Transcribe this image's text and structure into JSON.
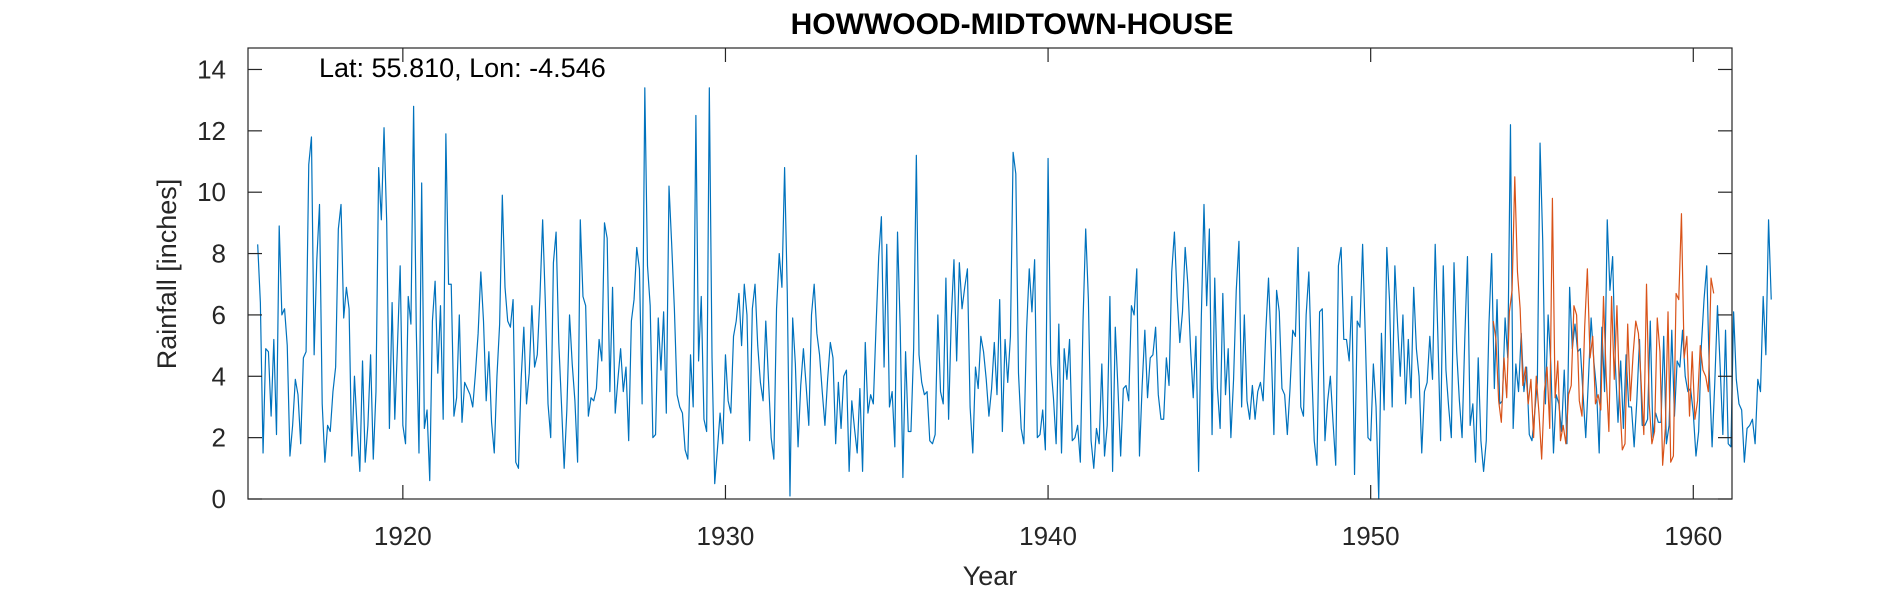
{
  "chart_data": {
    "type": "line",
    "title": "HOWWOOD-MIDTOWN-HOUSE",
    "annotation": "Lat: 55.810, Lon: -4.546",
    "xlabel": "Year",
    "ylabel": "Rainfall [inches]",
    "xlim": [
      1915.2,
      1961.2
    ],
    "ylim": [
      0,
      14.7
    ],
    "x_ticks": [
      1920,
      1930,
      1940,
      1950,
      1960
    ],
    "x_tick_labels": [
      "1920",
      "1930",
      "1940",
      "1950",
      "1960"
    ],
    "y_ticks": [
      0,
      2,
      4,
      6,
      8,
      10,
      12,
      14
    ],
    "y_tick_labels": [
      "0",
      "2",
      "4",
      "6",
      "8",
      "10",
      "12",
      "14"
    ],
    "grid": false,
    "colors": {
      "observed": "#0072BD",
      "recent": "#D95319",
      "axes": "#262626"
    },
    "series": [
      {
        "x_start": 1915.5,
        "x_step": 0.083333,
        "values": [
          8.3,
          6.4,
          1.5,
          4.9,
          4.8,
          2.7,
          5.2,
          2.1,
          8.9,
          6.0,
          6.2,
          5.0,
          1.4,
          2.4,
          3.9,
          3.4,
          1.8,
          4.6,
          4.8,
          10.9,
          11.8,
          4.7,
          7.8,
          9.6,
          3.1,
          1.2,
          2.4,
          2.2,
          3.5,
          4.3,
          8.8,
          9.6,
          5.9,
          6.9,
          6.2,
          1.4,
          4.0,
          2.3,
          0.9,
          4.5,
          1.2,
          2.4,
          4.7,
          1.3,
          3.5,
          10.8,
          9.1,
          12.1,
          9.0,
          2.3,
          6.4,
          2.6,
          5.0,
          7.6,
          2.4,
          1.8,
          6.6,
          5.7,
          12.8,
          5.5,
          1.5,
          10.3,
          2.3,
          2.9,
          0.6,
          5.8,
          7.1,
          4.1,
          6.3,
          2.6,
          11.9,
          7.0,
          7.0,
          2.7,
          3.3,
          6.0,
          2.5,
          3.8,
          3.6,
          3.4,
          3.0,
          4.1,
          5.4,
          7.4,
          5.8,
          3.2,
          4.8,
          2.5,
          1.5,
          4.0,
          5.7,
          9.9,
          6.9,
          5.8,
          5.6,
          6.5,
          1.2,
          1.0,
          3.9,
          5.6,
          3.1,
          4.1,
          6.3,
          4.3,
          4.7,
          6.6,
          9.1,
          6.4,
          3.1,
          2.0,
          7.7,
          8.7,
          5.1,
          3.1,
          1.0,
          2.9,
          6.0,
          4.4,
          3.2,
          1.2,
          9.1,
          6.6,
          6.3,
          2.7,
          3.3,
          3.2,
          3.6,
          5.2,
          4.5,
          9.0,
          8.5,
          3.5,
          6.9,
          2.8,
          3.9,
          4.9,
          3.5,
          4.3,
          1.9,
          5.8,
          6.5,
          8.2,
          7.5,
          3.1,
          13.4,
          7.6,
          6.3,
          2.0,
          2.1,
          5.9,
          4.2,
          6.1,
          2.8,
          10.2,
          8.3,
          6.2,
          3.4,
          3.0,
          2.8,
          1.6,
          1.3,
          4.7,
          3.0,
          12.5,
          4.5,
          6.6,
          2.6,
          2.2,
          13.4,
          4.6,
          0.5,
          1.6,
          2.8,
          1.8,
          4.7,
          3.2,
          2.8,
          5.3,
          5.8,
          6.7,
          5.0,
          7.0,
          6.0,
          1.9,
          6.2,
          7.0,
          5.0,
          3.8,
          3.2,
          5.8,
          3.9,
          2.0,
          1.3,
          6.2,
          8.0,
          6.9,
          10.8,
          6.7,
          0.1,
          5.9,
          4.4,
          1.7,
          3.7,
          4.9,
          3.7,
          2.4,
          6.0,
          7.0,
          5.4,
          4.7,
          3.5,
          2.4,
          3.9,
          5.1,
          4.6,
          1.8,
          3.8,
          2.3,
          4.0,
          4.2,
          0.9,
          3.2,
          2.3,
          1.5,
          3.6,
          0.9,
          5.1,
          2.8,
          3.4,
          3.1,
          5.6,
          7.9,
          9.2,
          4.3,
          8.3,
          3.0,
          3.5,
          1.7,
          8.7,
          5.6,
          0.7,
          4.8,
          2.2,
          2.2,
          4.9,
          11.2,
          4.7,
          3.8,
          3.4,
          3.5,
          1.9,
          1.8,
          2.1,
          6.0,
          3.5,
          3.1,
          7.2,
          2.6,
          5.9,
          7.8,
          4.5,
          7.7,
          6.2,
          6.9,
          7.5,
          3.0,
          1.5,
          4.3,
          3.6,
          5.3,
          4.8,
          3.9,
          2.7,
          3.6,
          5.1,
          3.4,
          6.5,
          2.2,
          5.2,
          3.8,
          5.3,
          11.3,
          10.6,
          4.1,
          2.3,
          1.8,
          5.5,
          7.5,
          6.1,
          7.8,
          2.0,
          2.1,
          2.9,
          1.6,
          11.1,
          4.4,
          3.3,
          1.8,
          5.7,
          1.5,
          4.9,
          3.9,
          5.2,
          1.9,
          2.0,
          2.4,
          1.2,
          5.8,
          8.8,
          6.5,
          1.9,
          1.0,
          2.3,
          1.8,
          4.4,
          1.4,
          2.4,
          6.6,
          0.9,
          5.6,
          3.6,
          1.4,
          3.6,
          3.7,
          3.2,
          6.3,
          6.0,
          7.5,
          1.4,
          3.7,
          5.5,
          3.3,
          4.6,
          4.7,
          5.6,
          3.4,
          2.6,
          2.6,
          4.6,
          3.7,
          7.4,
          8.7,
          6.6,
          5.1,
          6.1,
          8.2,
          7.0,
          4.9,
          3.3,
          5.3,
          0.9,
          5.9,
          9.6,
          6.3,
          8.8,
          2.1,
          7.2,
          3.6,
          2.3,
          6.7,
          3.4,
          4.9,
          2.0,
          3.9,
          6.8,
          8.4,
          3.0,
          6.0,
          3.2,
          2.6,
          3.7,
          2.6,
          3.5,
          3.8,
          3.2,
          5.5,
          7.2,
          4.9,
          2.1,
          6.8,
          6.1,
          3.6,
          3.4,
          2.1,
          3.6,
          5.5,
          5.3,
          8.2,
          3.0,
          2.7,
          6.0,
          7.4,
          4.4,
          1.9,
          1.1,
          6.1,
          6.2,
          1.9,
          3.2,
          4.0,
          2.5,
          1.1,
          7.6,
          8.2,
          5.2,
          5.2,
          4.5,
          6.6,
          0.8,
          5.8,
          5.6,
          8.3,
          5.3,
          2.0,
          1.9,
          4.4,
          3.0,
          0.0,
          5.4,
          2.9,
          8.2,
          6.5,
          3.0,
          7.6,
          5.7,
          4.0,
          6.0,
          3.1,
          5.2,
          3.3,
          6.9,
          4.9,
          4.0,
          1.5,
          3.5,
          3.8,
          5.3,
          3.9,
          8.3,
          5.3,
          1.9,
          7.6,
          4.2,
          3.0,
          2.0,
          7.7,
          4.8,
          3.2,
          2.0,
          5.2,
          7.9,
          2.4,
          3.1,
          1.2,
          4.6,
          1.9,
          0.9,
          1.9,
          5.7,
          8.0,
          3.6,
          6.5,
          3.1,
          3.2,
          5.9,
          4.6,
          12.2,
          2.3,
          4.4,
          3.5,
          5.4,
          3.5,
          4.3,
          2.1,
          1.9,
          2.8,
          3.8,
          11.6,
          8.4,
          3.1,
          6.0,
          4.4,
          1.5,
          3.4,
          3.1,
          2.2,
          4.2,
          1.8,
          6.9,
          4.9,
          5.7,
          4.8,
          4.9,
          3.4,
          2.0,
          3.9,
          5.9,
          4.5,
          3.6,
          1.5,
          5.6,
          3.5,
          9.1,
          6.8,
          7.9,
          4.4,
          2.5,
          4.5,
          2.3,
          4.7,
          3.0,
          3.0,
          1.7,
          3.2,
          5.2,
          2.4,
          2.4,
          2.6,
          5.8,
          2.0,
          2.8,
          2.5,
          2.5,
          5.3,
          1.8,
          2.4,
          5.5,
          2.7,
          4.5,
          4.3,
          5.5,
          4.0,
          3.5,
          3.6,
          2.8,
          1.4,
          2.2,
          5.0,
          6.5,
          7.6,
          4.0,
          1.7,
          3.8,
          6.3,
          4.3,
          2.1,
          5.5,
          1.8,
          1.7,
          6.1,
          3.9,
          3.1,
          2.9,
          1.2,
          2.3,
          2.4,
          2.6,
          1.8,
          3.9,
          3.5,
          6.6,
          4.7,
          9.1,
          6.5
        ],
        "x_end_note": ""
      },
      {
        "x_start": 1953.8,
        "x_step": 0.083333,
        "values": [
          5.8,
          5.2,
          3.2,
          2.5,
          4.6,
          3.3,
          6.1,
          6.8,
          10.5,
          7.4,
          6.2,
          3.7,
          4.3,
          3.1,
          3.9,
          2.0,
          4.0,
          2.8,
          1.3,
          3.5,
          4.3,
          2.3,
          9.8,
          3.3,
          4.5,
          1.9,
          2.4,
          1.8,
          3.4,
          3.7,
          6.3,
          6.0,
          3.2,
          2.7,
          5.6,
          7.5,
          4.6,
          5.3,
          3.1,
          3.4,
          2.9,
          6.6,
          4.0,
          2.2,
          6.6,
          3.9,
          6.3,
          3.3,
          1.6,
          1.8,
          5.7,
          3.2,
          4.7,
          5.8,
          5.4,
          3.8,
          2.1,
          7.0,
          3.1,
          1.8,
          2.2,
          5.9,
          4.8,
          1.1,
          2.3,
          6.1,
          1.2,
          1.4,
          6.7,
          6.5,
          9.3,
          4.6,
          5.3,
          2.7,
          4.8,
          2.6,
          3.2,
          5.0,
          4.2,
          4.0,
          3.5,
          7.2,
          6.7
        ]
      }
    ]
  }
}
